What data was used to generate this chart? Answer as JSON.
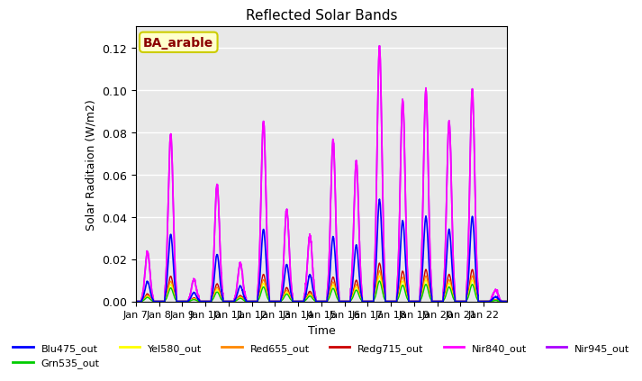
{
  "title": "Reflected Solar Bands",
  "xlabel": "Time",
  "ylabel": "Solar Raditaion (W/m2)",
  "annotation": "BA_arable",
  "ylim": [
    0,
    0.13
  ],
  "yticks": [
    0.0,
    0.02,
    0.04,
    0.06,
    0.08,
    0.1,
    0.12
  ],
  "xtick_labels": [
    "Jan 7",
    "Jan 8",
    "Jan 9",
    "Jan 10",
    "Jan 11",
    "Jan 12",
    "Jan 13",
    "Jan 14",
    "Jan 15",
    "Jan 16",
    "Jan 17",
    "Jan 18",
    "Jan 19",
    "Jan 20",
    "Jan 21",
    "Jan 22"
  ],
  "colors": {
    "Blu475_out": "#0000ff",
    "Grn535_out": "#00cc00",
    "Yel580_out": "#ffff00",
    "Red655_out": "#ff8800",
    "Redg715_out": "#cc0000",
    "Nir840_out": "#ff00ff",
    "Nir945_out": "#aa00ff"
  },
  "legend_labels": [
    "Blu475_out",
    "Grn535_out",
    "Yel580_out",
    "Red655_out",
    "Redg715_out",
    "Nir840_out",
    "Nir945_out"
  ],
  "day_peaks": [
    0.023,
    0.079,
    0.01,
    0.055,
    0.018,
    0.085,
    0.043,
    0.031,
    0.076,
    0.066,
    0.12,
    0.095,
    0.1,
    0.085,
    0.1,
    0.005
  ],
  "band_scales": {
    "Blu475_out": 0.4,
    "Grn535_out": 0.08,
    "Yel580_out": 0.1,
    "Red655_out": 0.12,
    "Redg715_out": 0.15,
    "Nir840_out": 1.0,
    "Nir945_out": 1.0
  },
  "plot_order": [
    "Nir945_out",
    "Nir840_out",
    "Redg715_out",
    "Red655_out",
    "Yel580_out",
    "Grn535_out",
    "Blu475_out"
  ],
  "bg_color": "#e8e8e8",
  "grid_color": "#ffffff",
  "n_days": 16,
  "n_per_day": 144
}
